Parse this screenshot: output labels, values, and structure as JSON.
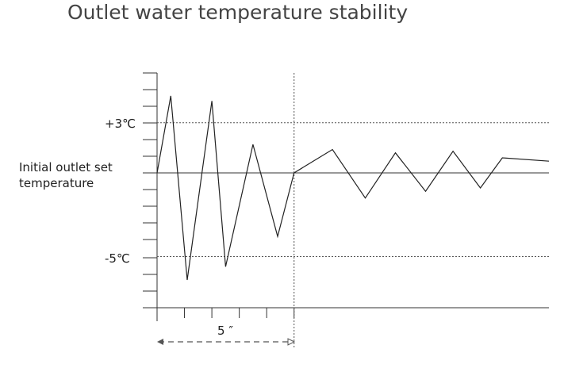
{
  "chart_data": {
    "type": "line",
    "title": "Outlet water temperature stability",
    "reference_line": {
      "label_line1": "Initial outlet set",
      "label_line2": "temperature",
      "value": 0
    },
    "bands": [
      {
        "label": "+3℃",
        "value": 3
      },
      {
        "label": "-5℃",
        "value": -5
      }
    ],
    "duration_marker": {
      "label": "5 ″",
      "x_start": 0,
      "x_end": 5
    },
    "ylim": [
      -7.5,
      6
    ],
    "xlim": [
      0,
      14.3
    ],
    "series": [
      {
        "x": [
          0,
          0.5,
          1.1,
          2.0,
          2.5,
          3.5,
          4.4,
          5.0,
          6.4,
          7.6,
          8.7,
          9.8,
          10.8,
          11.8,
          12.6,
          14.3
        ],
        "y": [
          0,
          4.6,
          -6.4,
          4.3,
          -5.6,
          1.7,
          -3.8,
          0,
          1.4,
          -1.5,
          1.2,
          -1.1,
          1.3,
          -0.9,
          0.9,
          0.7
        ]
      }
    ],
    "axis_color": "#333333",
    "line_color": "#222222",
    "title_color": "#444444"
  }
}
